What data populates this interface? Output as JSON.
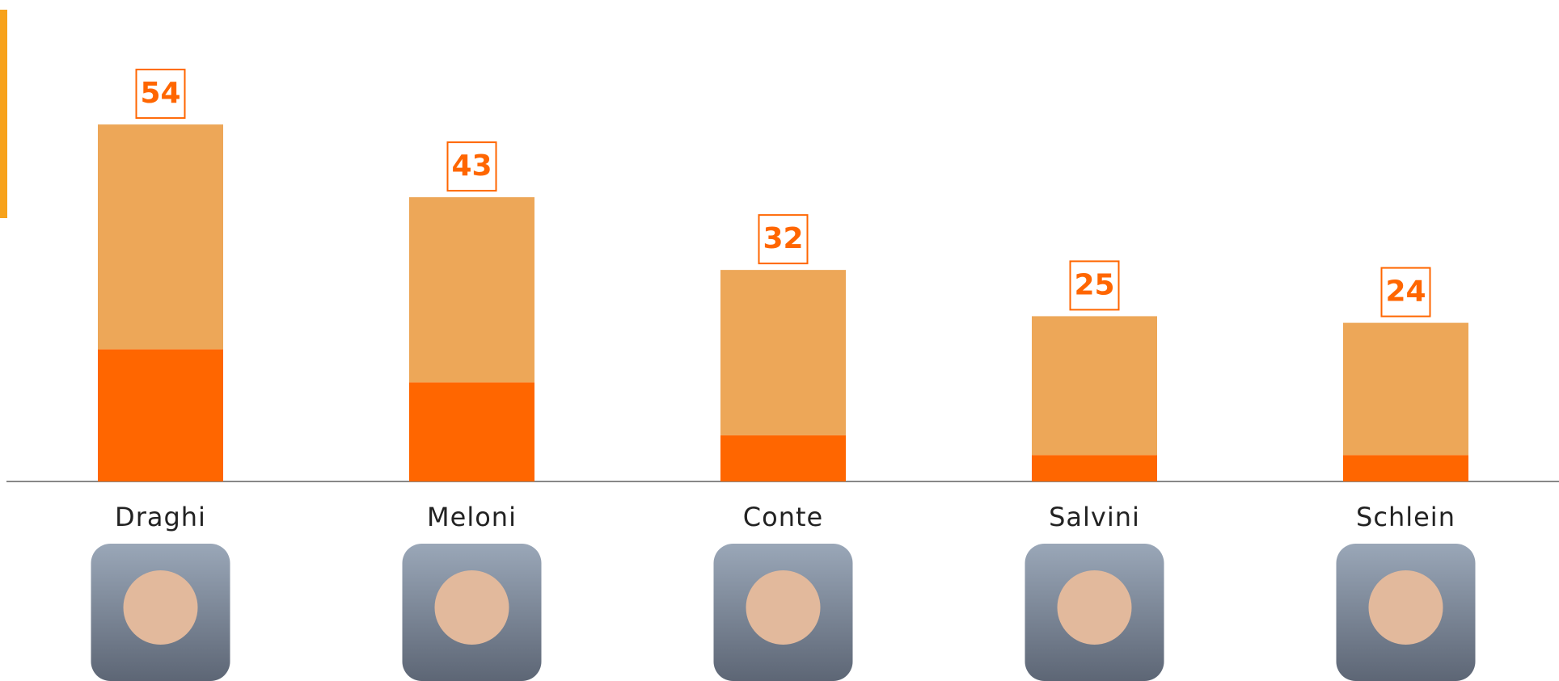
{
  "chart_data": {
    "type": "stacked_bar",
    "categories": [
      "Draghi",
      "Meloni",
      "Conte",
      "Salvini",
      "Schlein"
    ],
    "series": [
      {
        "color": "#ff6600",
        "values": [
          20,
          15,
          7,
          4,
          4
        ]
      },
      {
        "color": "#eda758",
        "values": [
          34,
          28,
          25,
          21,
          20
        ]
      }
    ],
    "totals": [
      54,
      43,
      32,
      25,
      24
    ],
    "ylim": [
      0,
      60
    ]
  }
}
